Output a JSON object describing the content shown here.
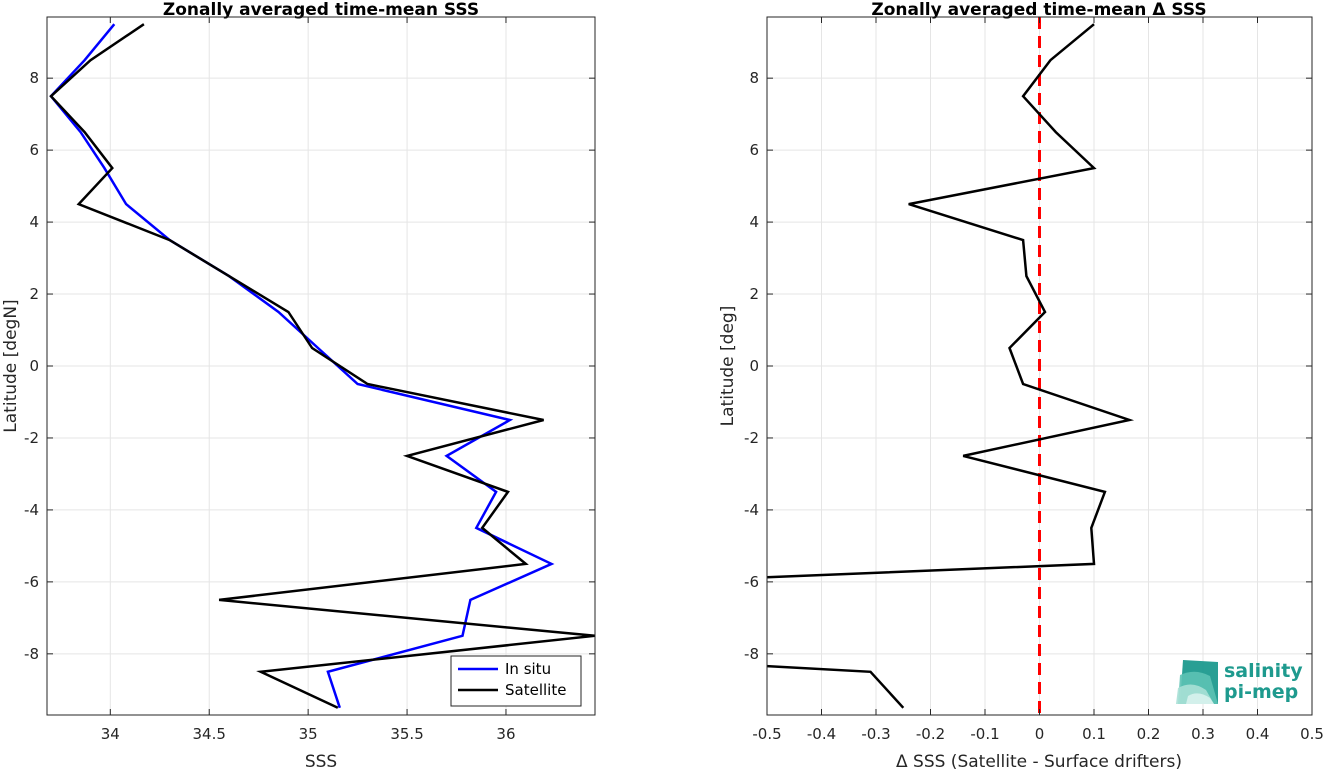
{
  "colors": {
    "insitu": "#0000ff",
    "satellite": "#000000",
    "zero_line": "#ff0000",
    "grid": "#e5e5e5",
    "logo": "#1e9a8e"
  },
  "logo": {
    "line1": "salinity",
    "line2": "pi-mep"
  },
  "chart_data": [
    {
      "type": "line",
      "title": "Zonally averaged time-mean SSS",
      "xlabel": "SSS",
      "ylabel": "Latitude [degN]",
      "xlim": [
        33.68,
        36.45
      ],
      "ylim": [
        -9.7,
        9.7
      ],
      "xticks": [
        34,
        34.5,
        35,
        35.5,
        36
      ],
      "xtick_labels": [
        "34",
        "34.5",
        "35",
        "35.5",
        "36"
      ],
      "yticks": [
        -8,
        -6,
        -4,
        -2,
        0,
        2,
        4,
        6,
        8
      ],
      "grid": true,
      "legend": {
        "location": "bottom-right",
        "entries": [
          "In situ",
          "Satellite"
        ]
      },
      "series": [
        {
          "name": "In situ",
          "color": "#0000ff",
          "x": [
            34.02,
            33.87,
            33.7,
            33.85,
            33.97,
            34.08,
            34.3,
            34.6,
            34.85,
            35.05,
            35.25,
            36.02,
            35.7,
            35.95,
            35.85,
            36.23,
            35.82,
            35.78,
            35.1,
            35.16
          ],
          "y": [
            9.5,
            8.5,
            7.5,
            6.5,
            5.5,
            4.5,
            3.5,
            2.5,
            1.5,
            0.5,
            -0.5,
            -1.5,
            -2.5,
            -3.5,
            -4.5,
            -5.5,
            -6.5,
            -7.5,
            -8.5,
            -9.5
          ]
        },
        {
          "name": "Satellite",
          "color": "#000000",
          "x": [
            34.17,
            33.9,
            33.7,
            33.87,
            34.01,
            33.84,
            34.3,
            34.6,
            34.9,
            35.02,
            35.3,
            36.19,
            35.5,
            36.01,
            35.88,
            36.1,
            34.55,
            36.45,
            34.76,
            35.15
          ],
          "y": [
            9.5,
            8.5,
            7.5,
            6.5,
            5.5,
            4.5,
            3.5,
            2.5,
            1.5,
            0.5,
            -0.5,
            -1.5,
            -2.5,
            -3.5,
            -4.5,
            -5.5,
            -6.5,
            -7.5,
            -8.5,
            -9.5
          ]
        }
      ]
    },
    {
      "type": "line",
      "title": "Zonally averaged time-mean Δ SSS",
      "xlabel": "Δ SSS (Satellite - Surface drifters)",
      "ylabel": "Latitude [deg]",
      "xlim": [
        -0.5,
        0.5
      ],
      "ylim": [
        -9.7,
        9.7
      ],
      "xticks": [
        -0.5,
        -0.4,
        -0.3,
        -0.2,
        -0.1,
        0,
        0.1,
        0.2,
        0.3,
        0.4,
        0.5
      ],
      "xtick_labels": [
        "-0.5",
        "-0.4",
        "-0.3",
        "-0.2",
        "-0.1",
        "0",
        "0.1",
        "0.2",
        "0.3",
        "0.4",
        "0.5"
      ],
      "yticks": [
        -8,
        -6,
        -4,
        -2,
        0,
        2,
        4,
        6,
        8
      ],
      "grid": true,
      "reference_line": {
        "x": 0,
        "style": "dashed",
        "color": "#ff0000"
      },
      "series": [
        {
          "color": "#000000",
          "segments": [
            {
              "x": [
                0.1,
                0.02,
                -0.03,
                0.03,
                0.1,
                -0.24,
                -0.03,
                -0.024,
                0.01,
                -0.055,
                -0.03,
                0.165,
                -0.14,
                0.12,
                0.095,
                0.1,
                -0.55
              ],
              "y": [
                9.5,
                8.5,
                7.5,
                6.5,
                5.5,
                4.5,
                3.5,
                2.5,
                1.5,
                0.5,
                -0.5,
                -1.5,
                -2.5,
                -3.5,
                -4.5,
                -5.5,
                -5.9
              ]
            },
            {
              "x": [
                -0.55,
                -0.31,
                -0.25
              ],
              "y": [
                -8.3,
                -8.5,
                -9.5
              ]
            }
          ]
        }
      ]
    }
  ]
}
